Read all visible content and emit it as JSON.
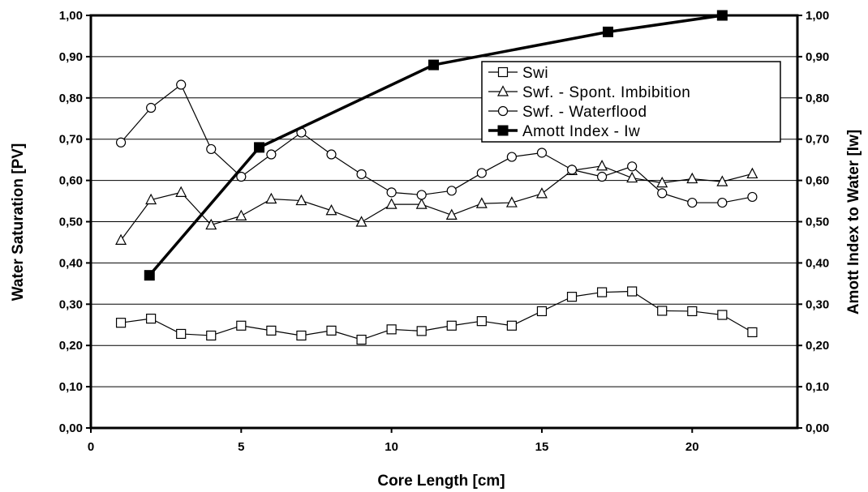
{
  "chart_data": {
    "type": "line",
    "xlabel": "Core Length [cm]",
    "ylabel": "Water Saturation [PV]",
    "y2label": "Amott Index to Water [Iw]",
    "xlim": [
      0,
      23.5
    ],
    "ylim": [
      0,
      1
    ],
    "y2lim": [
      0,
      1
    ],
    "x_ticks": [
      "0",
      "5",
      "10",
      "15",
      "20"
    ],
    "y_ticks": [
      "0,00",
      "0,10",
      "0,20",
      "0,30",
      "0,40",
      "0,50",
      "0,60",
      "0,70",
      "0,80",
      "0,90",
      "1,00"
    ],
    "y2_ticks": [
      "0,00",
      "0,10",
      "0,20",
      "0,30",
      "0,40",
      "0,50",
      "0,60",
      "0,70",
      "0,80",
      "0,90",
      "1,00"
    ],
    "grid": "horizontal",
    "legend_position": "top-right",
    "series": [
      {
        "name": "Swi",
        "marker": "square-open",
        "axis": "left",
        "x": [
          1,
          2,
          3,
          4,
          5,
          6,
          7,
          8,
          9,
          10,
          11,
          12,
          13,
          14,
          15,
          16,
          17,
          18,
          19,
          20,
          21,
          22
        ],
        "y": [
          0.255,
          0.265,
          0.228,
          0.224,
          0.248,
          0.236,
          0.224,
          0.236,
          0.214,
          0.239,
          0.235,
          0.248,
          0.259,
          0.248,
          0.283,
          0.318,
          0.329,
          0.331,
          0.284,
          0.283,
          0.274,
          0.232
        ]
      },
      {
        "name": "Swf. - Spont. Imbibition",
        "marker": "triangle-open",
        "axis": "left",
        "x": [
          1,
          2,
          3,
          4,
          5,
          6,
          7,
          8,
          9,
          10,
          11,
          12,
          13,
          14,
          15,
          16,
          17,
          18,
          19,
          20,
          21,
          22
        ],
        "y": [
          0.455,
          0.553,
          0.571,
          0.492,
          0.514,
          0.555,
          0.551,
          0.527,
          0.499,
          0.542,
          0.542,
          0.516,
          0.544,
          0.546,
          0.568,
          0.624,
          0.635,
          0.606,
          0.594,
          0.604,
          0.597,
          0.616
        ]
      },
      {
        "name": "Swf. - Waterflood",
        "marker": "circle-open",
        "axis": "left",
        "x": [
          1,
          2,
          3,
          4,
          5,
          6,
          7,
          8,
          9,
          10,
          11,
          12,
          13,
          14,
          15,
          16,
          17,
          18,
          19,
          20,
          21,
          22
        ],
        "y": [
          0.692,
          0.776,
          0.832,
          0.676,
          0.609,
          0.663,
          0.716,
          0.663,
          0.615,
          0.571,
          0.565,
          0.575,
          0.618,
          0.657,
          0.667,
          0.626,
          0.609,
          0.634,
          0.569,
          0.546,
          0.546,
          0.56
        ]
      },
      {
        "name": "Amott Index - Iw",
        "marker": "square-filled",
        "axis": "right",
        "x": [
          1.95,
          5.6,
          11.4,
          17.2,
          21
        ],
        "y": [
          0.37,
          0.68,
          0.88,
          0.96,
          1.0
        ]
      }
    ]
  }
}
